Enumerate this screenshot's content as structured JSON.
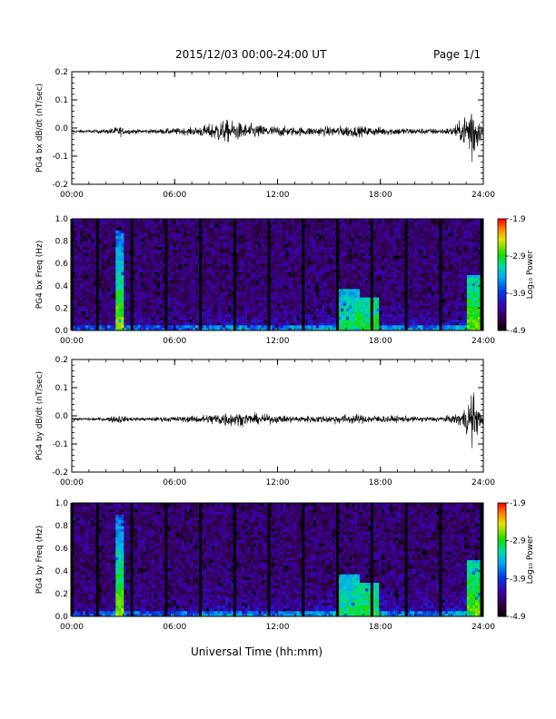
{
  "header": {
    "title": "2015/12/03  00:00-24:00 UT",
    "page": "Page 1/1"
  },
  "x_axis_title": "Universal Time (hh:mm)",
  "colorbar": {
    "label": "Log₁₀ Power",
    "ticks": [
      "-1.9",
      "-2.9",
      "-3.9",
      "-4.9"
    ],
    "range": [
      -4.9,
      -1.9
    ]
  },
  "chart_data": [
    {
      "type": "line",
      "ylabel": "PG4 bx dB/dt (nT/sec)",
      "ylim": [
        -0.2,
        0.2
      ],
      "yticks": [
        "0.2",
        "0.1",
        "0.0",
        "-0.1",
        "-0.2"
      ],
      "xlim_hours": [
        0,
        24
      ],
      "xticks": [
        "00:00",
        "06:00",
        "12:00",
        "18:00",
        "24:00"
      ],
      "envelope": {
        "t_hours": [
          0,
          1,
          2,
          2.8,
          3,
          4,
          5,
          6,
          7,
          8,
          8.5,
          9,
          10,
          11,
          12,
          13,
          14,
          15,
          16,
          17,
          18,
          19,
          20,
          21,
          22,
          22.8,
          23,
          23.3,
          23.5,
          23.7,
          24
        ],
        "amplitude": [
          0.006,
          0.006,
          0.008,
          0.02,
          0.012,
          0.007,
          0.009,
          0.012,
          0.014,
          0.026,
          0.04,
          0.042,
          0.03,
          0.024,
          0.02,
          0.016,
          0.016,
          0.018,
          0.022,
          0.018,
          0.016,
          0.014,
          0.012,
          0.011,
          0.012,
          0.04,
          0.08,
          0.14,
          0.12,
          0.05,
          0.02
        ]
      }
    },
    {
      "type": "heatmap",
      "ylabel": "PG4 bx Freq (Hz)",
      "ylim": [
        0,
        1.0
      ],
      "yticks": [
        "1.0",
        "0.8",
        "0.6",
        "0.4",
        "0.2",
        "0.0"
      ],
      "xlim_hours": [
        0,
        24
      ],
      "xticks": [
        "00:00",
        "06:00",
        "12:00",
        "18:00",
        "24:00"
      ],
      "gap_hours": [
        0,
        1.5,
        3.5,
        5.5,
        7.5,
        9.5,
        11.5,
        13.5,
        15.5,
        17.5,
        19.5,
        21.5,
        23.9
      ],
      "features": [
        {
          "t_hours": 2.8,
          "width_hours": 0.3,
          "fmax": 0.9,
          "power": -2.6
        },
        {
          "t_hours": 16.2,
          "width_hours": 0.6,
          "fmax": 0.38,
          "power": -3.0
        },
        {
          "t_hours": 17.2,
          "width_hours": 0.8,
          "fmax": 0.3,
          "power": -2.9
        },
        {
          "t_hours": 23.5,
          "width_hours": 0.4,
          "fmax": 0.5,
          "power": -2.7
        }
      ]
    },
    {
      "type": "line",
      "ylabel": "PG4 by dB/dt (nT/sec)",
      "ylim": [
        -0.2,
        0.2
      ],
      "yticks": [
        "0.2",
        "0.1",
        "0.0",
        "-0.1",
        "-0.2"
      ],
      "xlim_hours": [
        0,
        24
      ],
      "xticks": [
        "00:00",
        "06:00",
        "12:00",
        "18:00",
        "24:00"
      ],
      "envelope": {
        "t_hours": [
          0,
          1,
          2,
          2.8,
          3,
          4,
          5,
          6,
          7,
          8,
          8.5,
          9,
          10,
          11,
          12,
          13,
          14,
          15,
          16,
          17,
          18,
          19,
          20,
          21,
          22,
          22.8,
          23,
          23.3,
          23.5,
          23.7,
          24
        ],
        "amplitude": [
          0.005,
          0.005,
          0.007,
          0.018,
          0.01,
          0.006,
          0.008,
          0.01,
          0.012,
          0.018,
          0.024,
          0.028,
          0.022,
          0.018,
          0.014,
          0.012,
          0.013,
          0.015,
          0.018,
          0.016,
          0.014,
          0.012,
          0.01,
          0.01,
          0.012,
          0.03,
          0.06,
          0.1,
          0.09,
          0.04,
          0.015
        ]
      }
    },
    {
      "type": "heatmap",
      "ylabel": "PG4 by Freq (Hz)",
      "ylim": [
        0,
        1.0
      ],
      "yticks": [
        "1.0",
        "0.8",
        "0.6",
        "0.4",
        "0.2",
        "0.0"
      ],
      "xlim_hours": [
        0,
        24
      ],
      "xticks": [
        "00:00",
        "06:00",
        "12:00",
        "18:00",
        "24:00"
      ],
      "gap_hours": [
        0,
        1.5,
        3.5,
        5.5,
        7.5,
        9.5,
        11.5,
        13.5,
        15.5,
        17.5,
        19.5,
        21.5,
        23.9
      ],
      "features": [
        {
          "t_hours": 2.8,
          "width_hours": 0.3,
          "fmax": 0.9,
          "power": -2.6
        },
        {
          "t_hours": 16.2,
          "width_hours": 0.6,
          "fmax": 0.38,
          "power": -3.0
        },
        {
          "t_hours": 17.2,
          "width_hours": 0.8,
          "fmax": 0.3,
          "power": -2.9
        },
        {
          "t_hours": 23.5,
          "width_hours": 0.4,
          "fmax": 0.5,
          "power": -2.7
        }
      ]
    }
  ]
}
